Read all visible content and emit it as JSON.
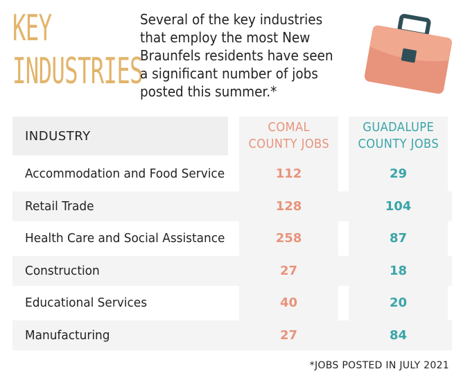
{
  "header": {
    "title_line1": "KEY",
    "title_line2": "INDUSTRIES",
    "intro_line1": "Several of the key industries",
    "intro_line2": "that employ the most New",
    "intro_line3": "Braunfels residents have seen",
    "intro_line4": "a significant number of jobs",
    "intro_line5": "posted this summer.*",
    "icon": "briefcase-icon"
  },
  "colors": {
    "title": "#e2b46b",
    "comal": "#e8937b",
    "guadalupe": "#3aa4a8",
    "shade": "#f4f4f4"
  },
  "chart_data": {
    "type": "table",
    "columns": {
      "industry": "INDUSTRY",
      "comal_line1": "COMAL",
      "comal_line2": "COUNTY JOBS",
      "guadalupe_line1": "GUADALUPE",
      "guadalupe_line2": "COUNTY JOBS"
    },
    "rows": [
      {
        "industry": "Accommodation and Food Service",
        "comal": "112",
        "guadalupe": "29"
      },
      {
        "industry": "Retail Trade",
        "comal": "128",
        "guadalupe": "104"
      },
      {
        "industry": "Health Care and Social Assistance",
        "comal": "258",
        "guadalupe": "87"
      },
      {
        "industry": "Construction",
        "comal": "27",
        "guadalupe": "18"
      },
      {
        "industry": "Educational Services",
        "comal": "40",
        "guadalupe": "20"
      },
      {
        "industry": "Manufacturing",
        "comal": "27",
        "guadalupe": "84"
      }
    ]
  },
  "footnote": "*JOBS POSTED IN JULY 2021"
}
